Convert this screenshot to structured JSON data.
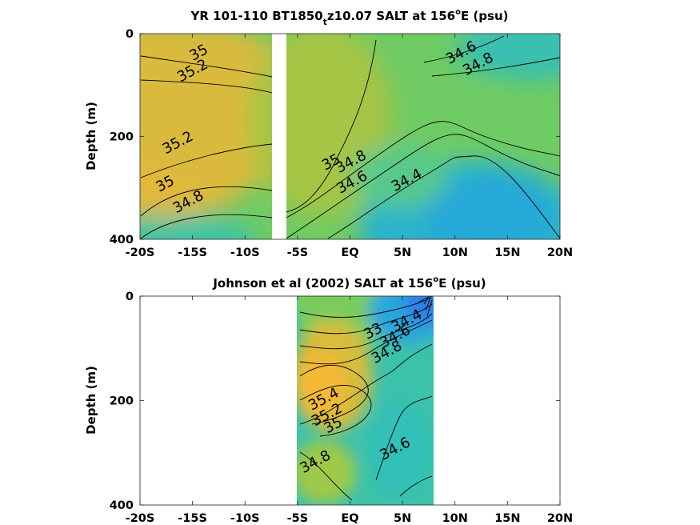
{
  "chart_data": [
    {
      "type": "heatmap",
      "title": "YR 101-110 BT1850_tz10.07 SALT at 156°E (psu)",
      "title_parts": {
        "main": "YR 101-110 BT1850",
        "sub": "t",
        "rest": "z10.07 SALT at 156",
        "sup": "o",
        "end": "E (psu)"
      },
      "ylabel": "Depth (m)",
      "xlim": [
        -20,
        20
      ],
      "ylim": [
        0,
        400
      ],
      "y_reversed": true,
      "x_ticks": [
        -20,
        -15,
        -10,
        -5,
        0,
        5,
        10,
        15,
        20
      ],
      "x_tick_labels": [
        "-20S",
        "-15S",
        "-10S",
        "-5S",
        "EQ",
        "5N",
        "10N",
        "15N",
        "20N"
      ],
      "y_ticks": [
        0,
        200,
        400
      ],
      "y_tick_labels": [
        "0",
        "200",
        "400"
      ],
      "gap_x": [
        -7.7,
        -6.7
      ],
      "contour_labels": [
        {
          "text": "35",
          "x": -14.2,
          "y": 45
        },
        {
          "text": "35.2",
          "x": -14.8,
          "y": 80
        },
        {
          "text": "34.6",
          "x": 10.8,
          "y": 45
        },
        {
          "text": "34.8",
          "x": 12.4,
          "y": 67
        },
        {
          "text": "35.2",
          "x": -16.2,
          "y": 220
        },
        {
          "text": "35",
          "x": -17.4,
          "y": 300
        },
        {
          "text": "34.8",
          "x": -15.2,
          "y": 335
        },
        {
          "text": "35",
          "x": -1.6,
          "y": 258
        },
        {
          "text": "34.8",
          "x": 0.3,
          "y": 257
        },
        {
          "text": "34.6",
          "x": 0.4,
          "y": 297
        },
        {
          "text": "34.4",
          "x": 5.6,
          "y": 293
        }
      ]
    },
    {
      "type": "heatmap",
      "title": "Johnson et al (2002) SALT at 156°E (psu)",
      "title_parts": {
        "main": "Johnson et al (2002) SALT at 156",
        "sup": "o",
        "end": "E (psu)"
      },
      "ylabel": "Depth (m)",
      "xlim": [
        -20,
        20
      ],
      "ylim": [
        0,
        400
      ],
      "y_reversed": true,
      "x_ticks": [
        -20,
        -15,
        -10,
        -5,
        0,
        5,
        10,
        15,
        20
      ],
      "x_tick_labels": [
        "-20S",
        "-15S",
        "-10S",
        "-5S",
        "EQ",
        "5N",
        "10N",
        "15N",
        "20N"
      ],
      "y_ticks": [
        0,
        200,
        400
      ],
      "y_tick_labels": [
        "0",
        "200",
        "400"
      ],
      "data_x_range": [
        -5,
        8
      ],
      "contour_labels": [
        {
          "text": "34.4",
          "x": 5.6,
          "y": 55
        },
        {
          "text": "34.6",
          "x": 4.5,
          "y": 85
        },
        {
          "text": "34.8",
          "x": 3.7,
          "y": 115
        },
        {
          "text": "33",
          "x": 2.4,
          "y": 75
        },
        {
          "text": "35.4",
          "x": -2.3,
          "y": 205
        },
        {
          "text": "35.2",
          "x": -2.0,
          "y": 235
        },
        {
          "text": "35",
          "x": -1.4,
          "y": 255
        },
        {
          "text": "34.6",
          "x": 4.5,
          "y": 300
        },
        {
          "text": "34.8",
          "x": -3.1,
          "y": 325
        }
      ]
    }
  ]
}
